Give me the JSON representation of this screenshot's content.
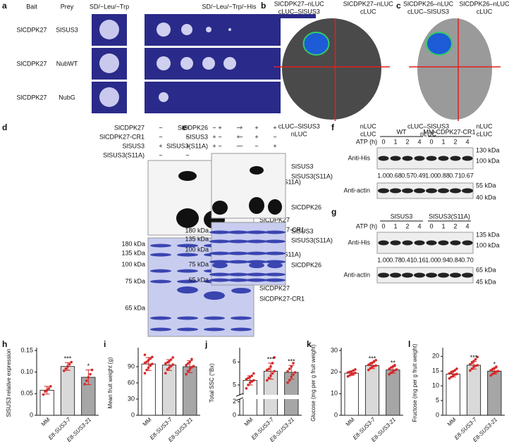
{
  "panels": {
    "a": {
      "label": "a",
      "headers": [
        "Bait",
        "Prey",
        "SD/−Leu/−Trp",
        "SD/−Leu/−Trp/−His"
      ],
      "rows": [
        [
          "SlCDPK27",
          "SlSUS3"
        ],
        [
          "SlCDPK27",
          "NubWT"
        ],
        [
          "SlCDPK27",
          "NubG"
        ]
      ]
    },
    "b": {
      "label": "b",
      "quadrants": [
        [
          "SlCDPK27–nLUC",
          "cLUC–SlSUS3"
        ],
        [
          "SlCDPK27–nLUC",
          "cLUC"
        ],
        [
          "cLUC–SlSUS3",
          "nLUC"
        ],
        [
          "nLUC",
          "cLUC"
        ]
      ]
    },
    "c": {
      "label": "c",
      "quadrants": [
        [
          "SlCDPK26–nLUC",
          "cLUC–SlSUS3"
        ],
        [
          "SlCDPK26–nLUC",
          "cLUC"
        ],
        [
          "cLUC–SlSUS3",
          "nLUC"
        ],
        [
          "nLUC",
          "cLUC"
        ]
      ]
    },
    "d": {
      "label": "d",
      "rows": [
        {
          "name": "SlCDPK27",
          "signs": [
            "−",
            "+",
            "−",
            "+"
          ]
        },
        {
          "name": "SlCDPK27-CR1",
          "signs": [
            "−",
            "−",
            "+",
            "−"
          ]
        },
        {
          "name": "SlSUS3",
          "signs": [
            "+",
            "+",
            "+",
            "−"
          ]
        },
        {
          "name": "SlSUS3(S11A)",
          "signs": [
            "−",
            "−",
            "−",
            "+"
          ]
        }
      ],
      "blot_labels": [
        "SlSUS3",
        "SlSUS3(S11A)",
        "SlCDPK27",
        "SlCDPK27-CR1"
      ],
      "markers": [
        "180 kDa",
        "135 kDa",
        "100 kDa",
        "75 kDa",
        "65 kDa"
      ],
      "gel_labels": [
        "SlSUS3",
        "SlSUS3(S11A)",
        "SlCDPK27",
        "SlCDPK27-CR1"
      ]
    },
    "e": {
      "label": "e",
      "rows": [
        {
          "name": "SlCDPK26",
          "signs": [
            "+",
            "−",
            "+",
            "+"
          ]
        },
        {
          "name": "SlSUS3",
          "signs": [
            "−",
            "+",
            "+",
            "−"
          ]
        },
        {
          "name": "SlSUS3(S11A)",
          "signs": [
            "−",
            "−",
            "−",
            "+"
          ]
        }
      ],
      "blot_labels": [
        "SlSUS3",
        "SlSUS3(S11A)",
        "SlCDPK26"
      ],
      "markers": [
        "180 kDa",
        "135 kDa",
        "100 kDa",
        "75 kDa",
        "65 kDa"
      ],
      "gel_labels": [
        "SlSUS3",
        "SlSUS3(S11A)",
        "SlCDPK26"
      ]
    },
    "f": {
      "label": "f",
      "x_label": "ATP (h)",
      "groups": [
        "WT",
        "MM-CDPK27-CR1"
      ],
      "lanes": [
        0,
        1,
        2,
        4,
        0,
        1,
        2,
        4
      ],
      "antibodies": [
        "Anti-His",
        "Anti-actin"
      ],
      "quantification": [
        "1.00",
        "0.68",
        "0.57",
        "0.49",
        "1.00",
        "0.88",
        "0.71",
        "0.67"
      ],
      "markers": [
        "130 kDa",
        "100 kDa",
        "55 kDa",
        "40 kDa"
      ]
    },
    "g": {
      "label": "g",
      "x_label": "ATP (h)",
      "groups": [
        "SlSUS3",
        "SlSUS3(S11A)"
      ],
      "lanes": [
        0,
        1,
        2,
        4,
        0,
        1,
        2,
        4
      ],
      "antibodies": [
        "Anti-His",
        "Anti-actin"
      ],
      "quantification": [
        "1.00",
        "0.78",
        "0.41",
        "0.16",
        "1.00",
        "0.94",
        "0.84",
        "0.70"
      ],
      "markers": [
        "135 kDa",
        "100 kDa",
        "65 kDa",
        "45 kDa"
      ]
    }
  },
  "chart_data": [
    {
      "type": "bar",
      "label": "h",
      "y_label": "SlSUS3 relative expression",
      "categories": [
        "MM",
        "E8-SUS3-7",
        "E8-SUS3-21"
      ],
      "values": [
        0.058,
        0.113,
        0.088
      ],
      "errors": [
        0.009,
        0.009,
        0.017
      ],
      "points": [
        [
          0.048,
          0.055,
          0.058,
          0.062,
          0.067
        ],
        [
          0.103,
          0.108,
          0.113,
          0.118,
          0.123
        ],
        [
          0.072,
          0.08,
          0.088,
          0.095,
          0.105
        ]
      ],
      "significance": [
        null,
        "***",
        "*"
      ],
      "colors": [
        "#ffffff",
        "#d9d9d9",
        "#a6a6a6"
      ],
      "point_color": "#d62728",
      "ylim": [
        0,
        0.15
      ],
      "yticks": [
        0,
        0.05,
        {
          "value": 0.1,
          "label": "0.10"
        },
        0.15
      ]
    },
    {
      "type": "bar",
      "label": "i",
      "y_label": "Mean fruit weight (g)",
      "categories": [
        "MM",
        "E8-SUS3-7",
        "E8-SUS3-21"
      ],
      "values": [
        95,
        93,
        90
      ],
      "errors": [
        12,
        10,
        11
      ],
      "points": [
        [
          78,
          84,
          88,
          92,
          95,
          97,
          99,
          102,
          105,
          108,
          112
        ],
        [
          78,
          85,
          88,
          91,
          94,
          96,
          98,
          100,
          103,
          107
        ],
        [
          76,
          82,
          86,
          89,
          91,
          93,
          96,
          99,
          104
        ]
      ],
      "significance": [
        null,
        null,
        null
      ],
      "colors": [
        "#ffffff",
        "#d9d9d9",
        "#a6a6a6"
      ],
      "point_color": "#d62728",
      "ylim": [
        0,
        120
      ],
      "yticks": [
        0,
        30,
        60,
        90
      ]
    },
    {
      "type": "bar",
      "label": "j",
      "y_label": "Total SSC (°Bx)",
      "categories": [
        "MM",
        "E8-SUS3-7",
        "E8-SUS3-21"
      ],
      "values": [
        5.2,
        5.6,
        5.55
      ],
      "errors": [
        0.2,
        0.35,
        0.3
      ],
      "points": [
        [
          4.85,
          5.0,
          5.1,
          5.15,
          5.2,
          5.25,
          5.3,
          5.35,
          5.4,
          5.5
        ],
        [
          5.2,
          5.3,
          5.4,
          5.5,
          5.6,
          5.65,
          5.7,
          5.8,
          5.95,
          6.2
        ],
        [
          5.1,
          5.2,
          5.35,
          5.45,
          5.55,
          5.6,
          5.7,
          5.8,
          5.95
        ]
      ],
      "significance": [
        null,
        "***",
        "***"
      ],
      "colors": [
        "#ffffff",
        "#d9d9d9",
        "#a6a6a6"
      ],
      "point_color": "#d62728",
      "ylim": [
        0,
        6.5
      ],
      "axis_break": [
        2.3,
        4.6
      ],
      "yticks": [
        0,
        2,
        5,
        6
      ]
    },
    {
      "type": "bar",
      "label": "k",
      "y_label": "Glucose (mg per g fruit weight)",
      "categories": [
        "MM",
        "E8-SUS3-7",
        "E8-SUS3-21"
      ],
      "values": [
        19.5,
        23,
        21
      ],
      "errors": [
        1,
        1.4,
        1.5
      ],
      "points": [
        [
          18,
          18.5,
          19,
          19.3,
          19.6,
          19.8,
          20,
          20.3,
          20.7,
          21.2
        ],
        [
          21,
          21.8,
          22.3,
          22.8,
          23,
          23.4,
          23.8,
          24.3,
          25,
          25.5
        ],
        [
          19,
          19.7,
          20.2,
          20.8,
          21.2,
          21.5,
          22,
          22.6,
          23.2
        ]
      ],
      "significance": [
        null,
        "***",
        "**"
      ],
      "colors": [
        "#ffffff",
        "#d9d9d9",
        "#a6a6a6"
      ],
      "point_color": "#d62728",
      "ylim": [
        0,
        30
      ],
      "yticks": [
        0,
        10,
        20,
        30
      ]
    },
    {
      "type": "bar",
      "label": "l",
      "y_label": "Fructose (mg per g fruit weight)",
      "categories": [
        "MM",
        "E8-SUS3-7",
        "E8-SUS3-21"
      ],
      "values": [
        14,
        17,
        15
      ],
      "errors": [
        1,
        1.3,
        1
      ],
      "points": [
        [
          12.5,
          13,
          13.4,
          13.8,
          14,
          14.2,
          14.5,
          14.9,
          15.3,
          15.8
        ],
        [
          15.2,
          15.8,
          16.4,
          16.8,
          17,
          17.3,
          17.8,
          18.4,
          19,
          19.8
        ],
        [
          13.5,
          14,
          14.4,
          14.8,
          15,
          15.3,
          15.6,
          16,
          16.5
        ]
      ],
      "significance": [
        null,
        "***",
        "*"
      ],
      "colors": [
        "#ffffff",
        "#d9d9d9",
        "#a6a6a6"
      ],
      "point_color": "#d62728",
      "ylim": [
        0,
        22
      ],
      "yticks": [
        0,
        5,
        10,
        15,
        20
      ]
    }
  ]
}
